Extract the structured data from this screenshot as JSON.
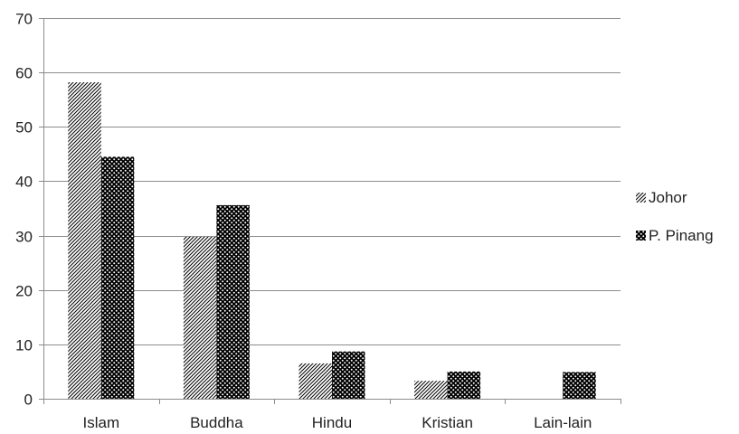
{
  "chart_data": {
    "type": "bar",
    "categories": [
      "Islam",
      "Buddha",
      "Hindu",
      "Kristian",
      "Lain-lain"
    ],
    "series": [
      {
        "name": "Johor",
        "values": [
          58.2,
          29.8,
          6.5,
          3.3,
          0
        ],
        "pattern": "diagonal-hatch"
      },
      {
        "name": "P. Pinang",
        "values": [
          44.5,
          35.6,
          8.7,
          5.0,
          4.9
        ],
        "pattern": "dots"
      }
    ],
    "title": "",
    "xlabel": "",
    "ylabel": "",
    "ylim": [
      0,
      70
    ],
    "yticks": [
      "0",
      "10",
      "20",
      "30",
      "40",
      "50",
      "60",
      "70"
    ],
    "grid": true,
    "legend_position": "right",
    "colors": {
      "ink": "#000000",
      "grid": "#8c8c8c",
      "axis": "#8c8c8c",
      "text": "#222222"
    }
  }
}
